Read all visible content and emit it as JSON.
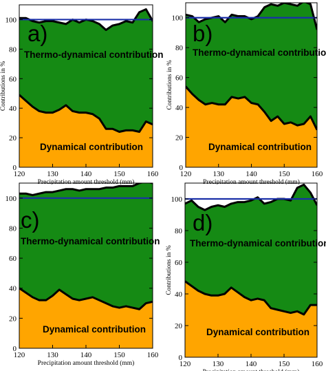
{
  "colors": {
    "thermo": "#158A14",
    "dynamical": "#FFA500",
    "reference_line": "#1A2FA8",
    "curve": "#000000"
  },
  "chart_data": [
    {
      "type": "area",
      "panel_label": "a)",
      "xlabel": "Precipitation amount threshold (mm)",
      "ylabel": "Contributions in %",
      "xlim": [
        120,
        160
      ],
      "ylim": [
        0,
        110
      ],
      "xticks": [
        120,
        130,
        140,
        150,
        160
      ],
      "yticks": [
        0,
        20,
        40,
        60,
        80,
        100
      ],
      "reference_line": 100,
      "annotations": [
        "Thermo-dynamical contribution",
        "Dynamical contribution"
      ],
      "x": [
        120,
        122,
        124,
        126,
        128,
        130,
        132,
        134,
        136,
        138,
        140,
        142,
        144,
        146,
        148,
        150,
        152,
        154,
        156,
        158,
        160
      ],
      "series": [
        {
          "name": "Thermo-dynamical contribution",
          "values": [
            101,
            101,
            99,
            98,
            99,
            99,
            98,
            97,
            100,
            98,
            100,
            99,
            97,
            93,
            96,
            97,
            99,
            98,
            105,
            107,
            99
          ]
        },
        {
          "name": "Dynamical contribution",
          "values": [
            49,
            45,
            41,
            38,
            37,
            37,
            39,
            42,
            38,
            37,
            37,
            36,
            33,
            26,
            26,
            24,
            25,
            25,
            24,
            31,
            29
          ]
        }
      ]
    },
    {
      "type": "area",
      "panel_label": "b)",
      "xlabel": "Precipitation amount threshold (mm)",
      "ylabel": "Contributions in %",
      "xlim": [
        120,
        160
      ],
      "ylim": [
        0,
        110
      ],
      "xticks": [
        120,
        130,
        140,
        150,
        160
      ],
      "yticks": [
        0,
        20,
        40,
        60,
        80,
        100
      ],
      "reference_line": 100,
      "annotations": [
        "Thermo-dynamical contribution",
        "Dynamical contribution"
      ],
      "x": [
        120,
        122,
        124,
        126,
        128,
        130,
        132,
        134,
        136,
        138,
        140,
        142,
        144,
        146,
        148,
        150,
        152,
        154,
        156,
        158,
        160
      ],
      "series": [
        {
          "name": "Thermo-dynamical contribution",
          "values": [
            102,
            101,
            97,
            99,
            100,
            101,
            97,
            102,
            101,
            101,
            99,
            101,
            107,
            109,
            108,
            110,
            109,
            108,
            111,
            109,
            92
          ]
        },
        {
          "name": "Dynamical contribution",
          "values": [
            54,
            49,
            45,
            42,
            43,
            42,
            42,
            47,
            46,
            47,
            43,
            42,
            37,
            31,
            34,
            29,
            30,
            28,
            29,
            34,
            25
          ]
        }
      ]
    },
    {
      "type": "area",
      "panel_label": "c)",
      "xlabel": "Precipitation amount threshold (mm)",
      "ylabel": "",
      "xlim": [
        120,
        160
      ],
      "ylim": [
        0,
        110
      ],
      "xticks": [
        120,
        130,
        140,
        150,
        160
      ],
      "yticks": [
        0,
        20,
        40,
        60,
        80,
        100
      ],
      "reference_line": 100,
      "annotations": [
        "Thermo-dynamical contribution",
        "Dynamical contribution"
      ],
      "x": [
        120,
        122,
        124,
        126,
        128,
        130,
        132,
        134,
        136,
        138,
        140,
        142,
        144,
        146,
        148,
        150,
        152,
        154,
        156,
        158,
        160
      ],
      "series": [
        {
          "name": "Thermo-dynamical contribution",
          "values": [
            103,
            103,
            102,
            103,
            104,
            104,
            105,
            106,
            106,
            105,
            106,
            106,
            106,
            107,
            107,
            108,
            108,
            108,
            110,
            111,
            110
          ]
        },
        {
          "name": "Dynamical contribution",
          "values": [
            40,
            37,
            34,
            32,
            32,
            35,
            39,
            36,
            33,
            32,
            33,
            34,
            32,
            30,
            28,
            27,
            28,
            27,
            26,
            30,
            31
          ]
        }
      ]
    },
    {
      "type": "area",
      "panel_label": "d)",
      "xlabel": "Precipitation amount threshold (mm)",
      "ylabel": "Contributions in %",
      "xlim": [
        120,
        160
      ],
      "ylim": [
        0,
        110
      ],
      "xticks": [
        120,
        130,
        140,
        150,
        160
      ],
      "yticks": [
        0,
        20,
        40,
        60,
        80,
        100
      ],
      "reference_line": 100,
      "annotations": [
        "Thermo-dynamical contribution",
        "Dynamical contribution"
      ],
      "x": [
        120,
        122,
        124,
        126,
        128,
        130,
        132,
        134,
        136,
        138,
        140,
        142,
        144,
        146,
        148,
        150,
        152,
        154,
        156,
        158,
        160
      ],
      "series": [
        {
          "name": "Thermo-dynamical contribution",
          "values": [
            97,
            99,
            95,
            93,
            95,
            96,
            95,
            97,
            98,
            98,
            99,
            101,
            97,
            98,
            100,
            100,
            99,
            107,
            109,
            104,
            96
          ]
        },
        {
          "name": "Dynamical contribution",
          "values": [
            48,
            45,
            42,
            40,
            39,
            39,
            40,
            44,
            41,
            38,
            36,
            37,
            36,
            31,
            30,
            29,
            28,
            29,
            27,
            33,
            33
          ]
        }
      ]
    }
  ]
}
